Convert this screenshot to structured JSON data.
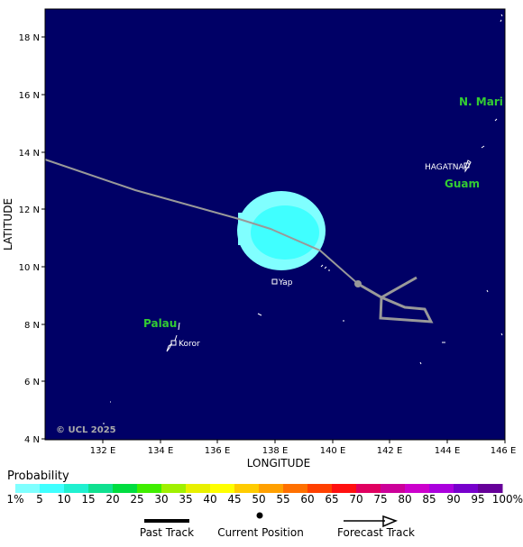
{
  "map": {
    "background": "#000066",
    "coast_color": "#ffffff",
    "lon_ticks": [
      "132 E",
      "134 E",
      "136 E",
      "138 E",
      "140 E",
      "142 E",
      "144 E",
      "146 E"
    ],
    "lat_ticks": [
      "18 N",
      "16 N",
      "14 N",
      "12 N",
      "10 N",
      "8 N",
      "6 N",
      "4 N"
    ],
    "xlabel": "LONGITUDE",
    "ylabel": "LATITUDE",
    "regions": {
      "n_mariana": "N. Mari",
      "guam": "Guam",
      "palau": "Palau"
    },
    "places": {
      "hagatna": "HAGATNA",
      "yap": "Yap",
      "koror": "Koror"
    },
    "copyright": "© UCL 2025"
  },
  "legend": {
    "title": "Probability",
    "labels": [
      "1%",
      "5",
      "10",
      "15",
      "20",
      "25",
      "30",
      "35",
      "40",
      "45",
      "50",
      "55",
      "60",
      "65",
      "70",
      "75",
      "80",
      "85",
      "90",
      "95",
      "100%"
    ],
    "colors": [
      "#80ffff",
      "#40ffff",
      "#20f0d0",
      "#10e090",
      "#00dd40",
      "#40ee00",
      "#a0f000",
      "#e8f000",
      "#ffff00",
      "#ffcc00",
      "#ffa000",
      "#ff7000",
      "#ff4000",
      "#ff1010",
      "#e00060",
      "#cc0099",
      "#cc00cc",
      "#aa00dd",
      "#7700cc",
      "#660099"
    ],
    "past_track": "Past Track",
    "current_position": "Current Position",
    "forecast_track": "Forecast Track"
  }
}
